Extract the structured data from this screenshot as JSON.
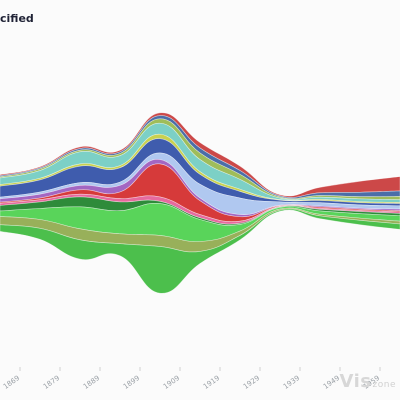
{
  "header": {
    "title": "cified"
  },
  "watermark": {
    "main": "Vis",
    "suffix": "zone"
  },
  "chart_data": {
    "type": "area",
    "layout": "streamgraph",
    "x": [
      1864,
      1874,
      1884,
      1894,
      1904,
      1914,
      1924,
      1934,
      1944,
      1954,
      1964
    ],
    "tick_labels": [
      "1869",
      "1879",
      "1889",
      "1899",
      "1909",
      "1919",
      "1929",
      "1939",
      "1949",
      "1959",
      "1969"
    ],
    "colors": [
      "#cc4848",
      "#4b6ea8",
      "#9fbd5a",
      "#7cd0c6",
      "#c9d14f",
      "#3f5cad",
      "#b0c8f0",
      "#a366c2",
      "#d63a3a",
      "#e66a9e",
      "#2e8b3a",
      "#59d45a",
      "#98b05a",
      "#4cbf4c"
    ],
    "series": [
      {
        "values": [
          2,
          2,
          3,
          3,
          5,
          10,
          8,
          2,
          10,
          20,
          26
        ]
      },
      {
        "values": [
          2,
          2,
          3,
          3,
          6,
          9,
          7,
          2,
          5,
          8,
          10
        ]
      },
      {
        "values": [
          2,
          3,
          3,
          4,
          8,
          12,
          9,
          2,
          3,
          4,
          6
        ]
      },
      {
        "values": [
          12,
          14,
          22,
          18,
          20,
          22,
          18,
          3,
          4,
          5,
          5
        ]
      },
      {
        "values": [
          3,
          3,
          4,
          4,
          8,
          5,
          4,
          1,
          2,
          2,
          2
        ]
      },
      {
        "values": [
          20,
          22,
          30,
          26,
          26,
          18,
          12,
          3,
          4,
          4,
          4
        ]
      },
      {
        "values": [
          3,
          4,
          5,
          6,
          12,
          25,
          30,
          6,
          6,
          6,
          6
        ]
      },
      {
        "values": [
          6,
          7,
          8,
          12,
          8,
          5,
          4,
          1,
          2,
          2,
          3
        ]
      },
      {
        "values": [
          2,
          3,
          8,
          12,
          60,
          25,
          8,
          1,
          2,
          2,
          2
        ]
      },
      {
        "values": [
          4,
          4,
          5,
          6,
          8,
          6,
          4,
          1,
          2,
          2,
          3
        ]
      },
      {
        "values": [
          10,
          12,
          18,
          16,
          4,
          3,
          2,
          1,
          3,
          4,
          4
        ]
      },
      {
        "values": [
          10,
          20,
          40,
          42,
          58,
          40,
          12,
          3,
          6,
          8,
          10
        ]
      },
      {
        "values": [
          15,
          16,
          20,
          18,
          20,
          18,
          8,
          2,
          3,
          4,
          5
        ]
      },
      {
        "values": [
          12,
          20,
          35,
          22,
          85,
          22,
          8,
          2,
          5,
          8,
          10
        ]
      }
    ]
  }
}
